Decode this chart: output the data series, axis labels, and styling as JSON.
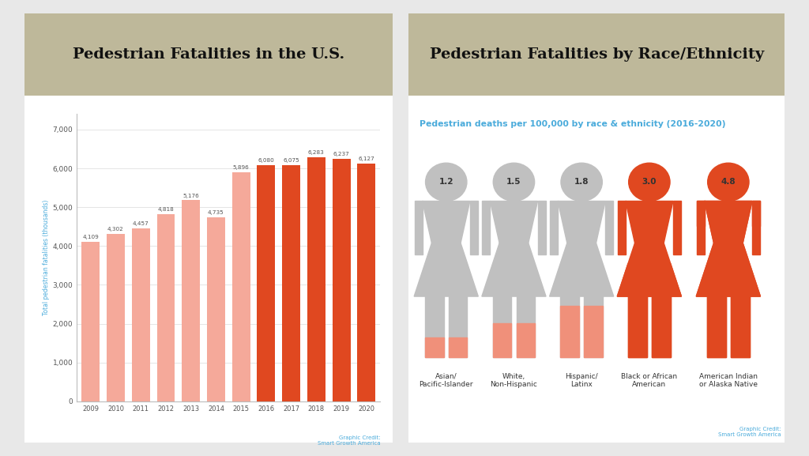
{
  "bar_years": [
    "2009",
    "2010",
    "2011",
    "2012",
    "2013",
    "2014",
    "2015",
    "2016",
    "2017",
    "2018",
    "2019",
    "2020"
  ],
  "bar_values": [
    4109,
    4302,
    4457,
    4818,
    5176,
    4735,
    5896,
    6080,
    6075,
    6283,
    6237,
    6127
  ],
  "left_title": "Pedestrian Fatalities in the U.S.",
  "right_title": "Pedestrian Fatalities by Race/Ethnicity",
  "subtitle": "Pedestrian deaths per 100,000 by race & ethnicity (2016-2020)",
  "ylabel": "Total pedestrian fatalities (thousands)",
  "yticks": [
    0,
    1000,
    2000,
    3000,
    4000,
    5000,
    6000,
    7000
  ],
  "ytick_labels": [
    "0",
    "1,000",
    "2,000",
    "3,000",
    "4,000",
    "5,000",
    "6,000",
    "7,000"
  ],
  "header_bg": "#BEB89A",
  "panel_bg": "#FFFFFF",
  "outer_bg": "#E8E8E8",
  "races": [
    "Asian/\nPacific-Islander",
    "White,\nNon-Hispanic",
    "Hispanic/\nLatinx",
    "Black or African\nAmerican",
    "American Indian\nor Alaska Native"
  ],
  "race_values": [
    "1.2",
    "1.5",
    "1.8",
    "3.0",
    "4.8"
  ],
  "figure_colors": [
    {
      "body": "#C0C0C0",
      "fill": "#F0907A",
      "fill_ratio": 0.13
    },
    {
      "body": "#C0C0C0",
      "fill": "#F0907A",
      "fill_ratio": 0.22
    },
    {
      "body": "#C0C0C0",
      "fill": "#F0907A",
      "fill_ratio": 0.33
    },
    {
      "body": "#E04820",
      "fill": "#E04820",
      "fill_ratio": 0.6
    },
    {
      "body": "#E04820",
      "fill": "#E04820",
      "fill_ratio": 1.0
    }
  ],
  "credit_text": "Graphic Credit:\nSmart Growth America",
  "credit_color": "#4AABDB",
  "bar_label_color": "#555555",
  "grid_color": "#E0E0E0",
  "light_bar": "#F5A99A",
  "dark_bar": "#E04820"
}
